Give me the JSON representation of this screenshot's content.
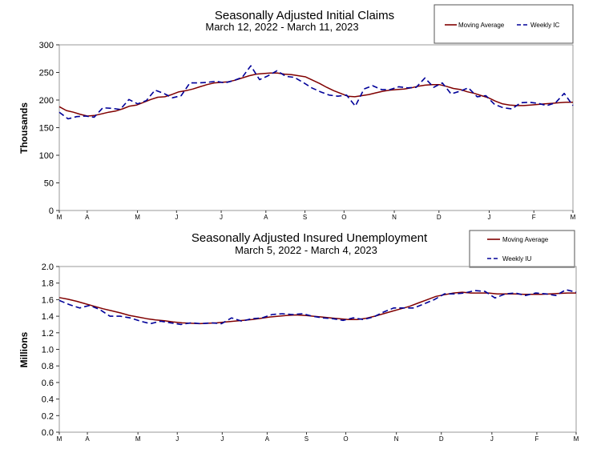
{
  "chart_data": [
    {
      "type": "line",
      "title": "Seasonally Adjusted Initial Claims",
      "subtitle": "March 12, 2022 - March 11, 2023",
      "ylabel": "Thousands",
      "xlabel": "",
      "ylim": [
        0,
        300
      ],
      "yticks": [
        0,
        50,
        100,
        150,
        200,
        250,
        300
      ],
      "yticklabels": [
        "0",
        "50",
        "100",
        "150",
        "200",
        "250",
        "300"
      ],
      "xticklabels": [
        "M",
        "A",
        "M",
        "J",
        "J",
        "A",
        "S",
        "O",
        "N",
        "D",
        "J",
        "F",
        "M"
      ],
      "xtick_week_index": [
        0,
        5,
        14,
        21,
        29,
        37,
        44,
        51,
        60,
        68,
        77,
        85,
        92
      ],
      "grid": false,
      "legend_position": "top-right",
      "series": [
        {
          "name": "Moving Average",
          "style": "solid",
          "color": "#800000",
          "values": [
            188,
            181,
            178,
            174,
            171,
            172,
            175,
            178,
            180,
            184,
            189,
            191,
            196,
            201,
            205,
            206,
            210,
            215,
            217,
            220,
            224,
            228,
            231,
            232,
            233,
            236,
            240,
            244,
            247,
            248,
            249,
            249,
            247,
            246,
            244,
            242,
            236,
            230,
            223,
            217,
            212,
            207,
            206,
            208,
            210,
            213,
            216,
            218,
            219,
            220,
            222,
            225,
            227,
            228,
            228,
            225,
            221,
            219,
            215,
            212,
            208,
            204,
            198,
            193,
            191,
            190,
            190,
            191,
            192,
            193,
            194,
            195,
            196,
            196
          ]
        },
        {
          "name": "Weekly IC",
          "style": "dashed",
          "color": "#000099",
          "values": [
            178,
            166,
            170,
            171,
            169,
            186,
            185,
            183,
            201,
            193,
            199,
            218,
            212,
            204,
            208,
            231,
            231,
            232,
            234,
            231,
            235,
            241,
            262,
            237,
            244,
            253,
            243,
            241,
            232,
            222,
            215,
            209,
            207,
            209,
            189,
            220,
            226,
            219,
            219,
            224,
            222,
            223,
            240,
            223,
            231,
            211,
            216,
            222,
            206,
            208,
            192,
            186,
            184,
            195,
            196,
            194,
            190,
            195,
            212,
            190
          ]
        }
      ]
    },
    {
      "type": "line",
      "title": "Seasonally Adjusted Insured Unemployment",
      "subtitle": "March 5, 2022 - March 4, 2023",
      "ylabel": "Millions",
      "xlabel": "",
      "ylim": [
        0,
        2.0
      ],
      "yticks": [
        0,
        0.2,
        0.4,
        0.6,
        0.8,
        1.0,
        1.2,
        1.4,
        1.6,
        1.8,
        2.0
      ],
      "yticklabels": [
        "0.0",
        "0.2",
        "0.4",
        "0.6",
        "0.8",
        "1.0",
        "1.2",
        "1.4",
        "1.6",
        "1.8",
        "2.0"
      ],
      "xticklabels": [
        "M",
        "A",
        "M",
        "J",
        "J",
        "A",
        "S",
        "O",
        "N",
        "D",
        "J",
        "F",
        "M"
      ],
      "xtick_week_index": [
        0,
        5,
        14,
        21,
        29,
        37,
        44,
        51,
        60,
        68,
        77,
        85,
        92
      ],
      "grid": false,
      "legend_position": "top-right",
      "series": [
        {
          "name": "Moving Average",
          "style": "solid",
          "color": "#800000",
          "values": [
            1.625,
            1.605,
            1.58,
            1.55,
            1.52,
            1.49,
            1.465,
            1.44,
            1.41,
            1.39,
            1.37,
            1.355,
            1.345,
            1.33,
            1.32,
            1.315,
            1.31,
            1.315,
            1.32,
            1.33,
            1.34,
            1.35,
            1.36,
            1.375,
            1.39,
            1.4,
            1.41,
            1.415,
            1.41,
            1.4,
            1.39,
            1.38,
            1.37,
            1.36,
            1.36,
            1.375,
            1.4,
            1.43,
            1.46,
            1.49,
            1.52,
            1.56,
            1.6,
            1.64,
            1.66,
            1.68,
            1.69,
            1.68,
            1.68,
            1.68,
            1.67,
            1.67,
            1.67,
            1.665,
            1.665,
            1.665,
            1.67,
            1.675,
            1.68,
            1.68
          ]
        },
        {
          "name": "Weekly IU",
          "style": "dashed",
          "color": "#000099",
          "values": [
            1.59,
            1.54,
            1.5,
            1.53,
            1.48,
            1.4,
            1.4,
            1.38,
            1.34,
            1.31,
            1.34,
            1.32,
            1.3,
            1.32,
            1.31,
            1.32,
            1.31,
            1.38,
            1.34,
            1.37,
            1.38,
            1.42,
            1.43,
            1.42,
            1.43,
            1.4,
            1.38,
            1.37,
            1.35,
            1.38,
            1.36,
            1.39,
            1.45,
            1.5,
            1.5,
            1.5,
            1.55,
            1.6,
            1.67,
            1.67,
            1.68,
            1.71,
            1.7,
            1.62,
            1.67,
            1.68,
            1.65,
            1.68,
            1.67,
            1.65,
            1.72,
            1.69
          ]
        }
      ]
    }
  ]
}
